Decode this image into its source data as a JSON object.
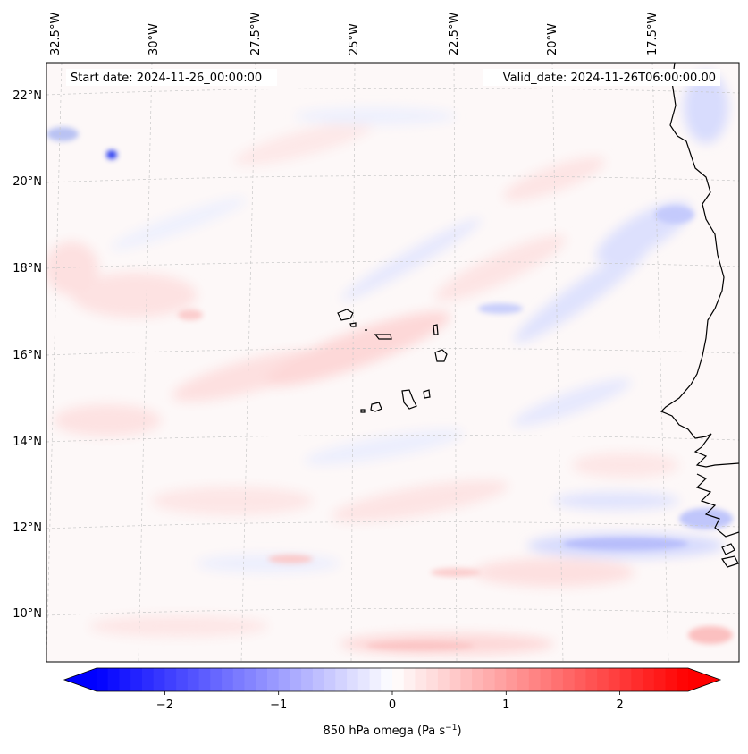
{
  "header": {
    "start_date": "Start date: 2024-11-26_00:00:00",
    "valid_date": "Valid_date: 2024-11-26T06:00:00.00"
  },
  "map": {
    "projection_grid": "lat/lon graticule, dashed light gray",
    "lon_labels": [
      "32.5°W",
      "30°W",
      "27.5°W",
      "25°W",
      "22.5°W",
      "20°W",
      "17.5°W"
    ],
    "lat_labels": [
      "22°N",
      "20°N",
      "18°N",
      "16°N",
      "14°N",
      "12°N",
      "10°N"
    ],
    "features": [
      "west-african-coastline",
      "cape-verde-islands"
    ]
  },
  "colorbar": {
    "label": "850 hPa omega (Pa s",
    "label_exponent": "−1",
    "label_suffix": ")",
    "ticks": [
      "−2",
      "−1",
      "0",
      "1",
      "2"
    ],
    "tick_values": [
      -2,
      -1,
      0,
      1,
      2
    ],
    "range": [
      -2.6,
      2.6
    ],
    "extend": "both",
    "colormap": "bwr",
    "colors": {
      "min": "#0000ff",
      "mid": "#ffffff",
      "max": "#ff0000"
    }
  }
}
